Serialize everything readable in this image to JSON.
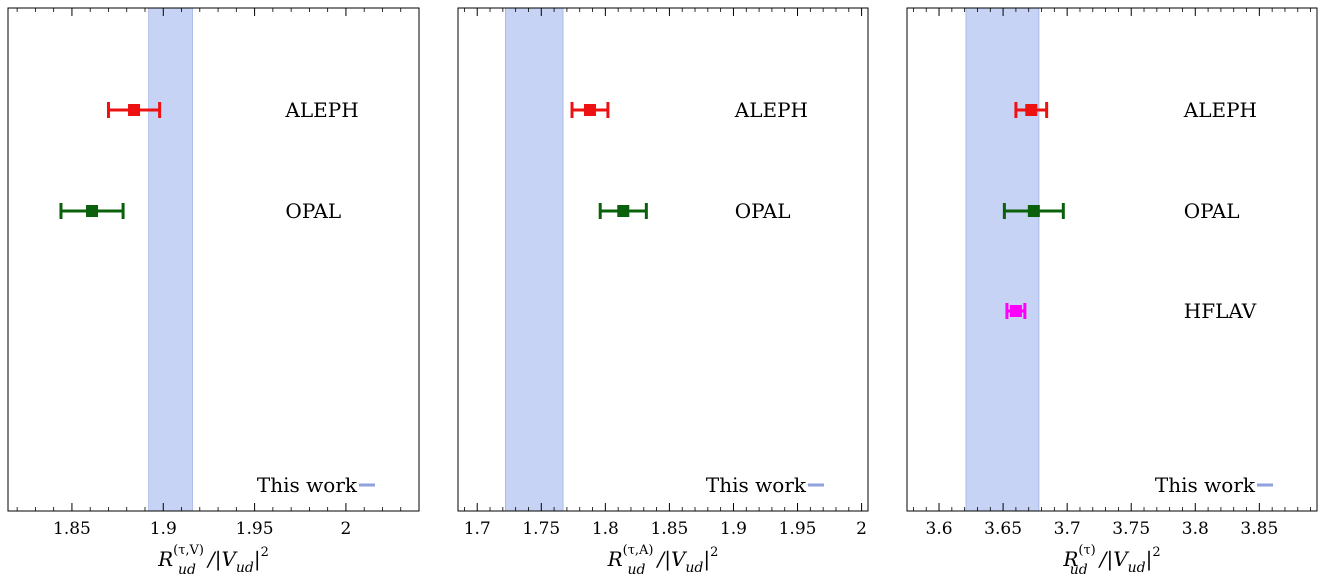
{
  "chart_data": [
    {
      "type": "errorbar",
      "xlabel": "R_ud^(τ,V)/|V_ud|^2",
      "xlabel_parts": {
        "base": "R",
        "sub": "ud",
        "sup": "(τ,V)",
        "rest": "/|V",
        "rest_sub": "ud",
        "tail": "|",
        "tail_sup": "2"
      },
      "xlim": [
        1.815,
        2.04
      ],
      "ticks": [
        1.85,
        1.9,
        1.95,
        2
      ],
      "tick_labels": [
        "1.85",
        "1.9",
        "1.95",
        "2"
      ],
      "band": {
        "name": "This work",
        "x": [
          1.892,
          1.916
        ],
        "color": "#c6d3f4"
      },
      "points": [
        {
          "name": "ALEPH",
          "value": 1.884,
          "lo": 1.87,
          "hi": 1.898,
          "color": "#ee1111"
        },
        {
          "name": "OPAL",
          "value": 1.861,
          "lo": 1.844,
          "hi": 1.878,
          "color": "#0b600b"
        }
      ],
      "legend": {
        "label": "This work",
        "position": "bottom-right"
      }
    },
    {
      "type": "errorbar",
      "xlabel": "R_ud^(τ,A)/|V_ud|^2",
      "xlabel_parts": {
        "base": "R",
        "sub": "ud",
        "sup": "(τ,A)",
        "rest": "/|V",
        "rest_sub": "ud",
        "tail": "|",
        "tail_sup": "2"
      },
      "xlim": [
        1.685,
        2.005
      ],
      "ticks": [
        1.7,
        1.75,
        1.8,
        1.85,
        1.9,
        1.95,
        2
      ],
      "tick_labels": [
        "1.7",
        "1.75",
        "1.8",
        "1.85",
        "1.9",
        "1.95",
        "2"
      ],
      "band": {
        "name": "This work",
        "x": [
          1.722,
          1.767
        ],
        "color": "#c6d3f4"
      },
      "points": [
        {
          "name": "ALEPH",
          "value": 1.788,
          "lo": 1.774,
          "hi": 1.802,
          "color": "#ee1111"
        },
        {
          "name": "OPAL",
          "value": 1.814,
          "lo": 1.796,
          "hi": 1.832,
          "color": "#0b600b"
        }
      ],
      "legend": {
        "label": "This work",
        "position": "bottom-right"
      }
    },
    {
      "type": "errorbar",
      "xlabel": "R_ud^(τ)/|V_ud|^2",
      "xlabel_parts": {
        "base": "R",
        "sub": "ud",
        "sup": "(τ)",
        "rest": "/|V",
        "rest_sub": "ud",
        "tail": "|",
        "tail_sup": "2"
      },
      "xlim": [
        3.575,
        3.895
      ],
      "ticks": [
        3.6,
        3.65,
        3.7,
        3.75,
        3.8,
        3.85
      ],
      "tick_labels": [
        "3.6",
        "3.65",
        "3.7",
        "3.75",
        "3.8",
        "3.85"
      ],
      "band": {
        "name": "This work",
        "x": [
          3.621,
          3.678
        ],
        "color": "#c6d3f4"
      },
      "points": [
        {
          "name": "ALEPH",
          "value": 3.672,
          "lo": 3.66,
          "hi": 3.684,
          "color": "#ee1111"
        },
        {
          "name": "OPAL",
          "value": 3.674,
          "lo": 3.651,
          "hi": 3.697,
          "color": "#0b600b"
        },
        {
          "name": "HFLAV",
          "value": 3.66,
          "lo": 3.653,
          "hi": 3.667,
          "color": "#ff00ff"
        }
      ],
      "legend": {
        "label": "This work",
        "position": "bottom-right"
      }
    }
  ]
}
